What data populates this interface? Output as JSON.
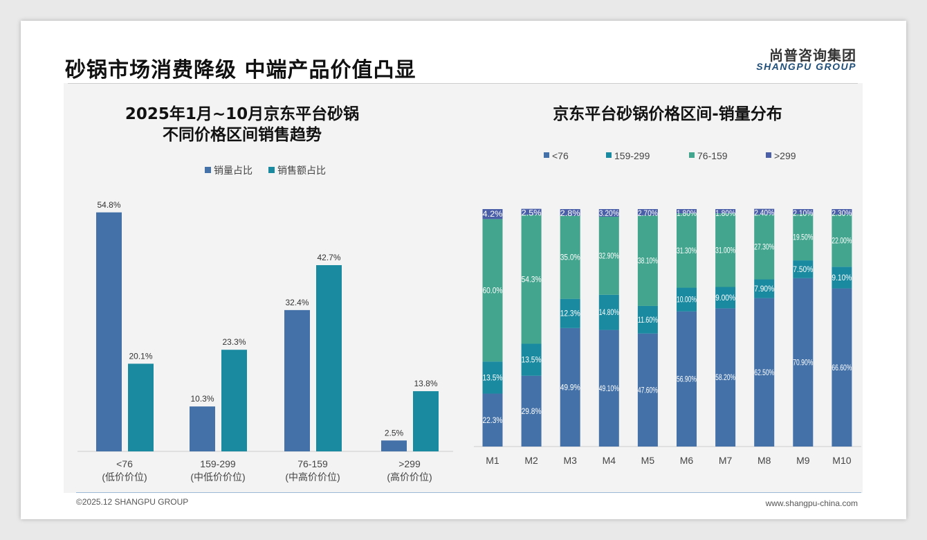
{
  "header": {
    "title": "砂锅市场消费降级 中端产品价值凸显",
    "logo_cn": "尚普咨询集团",
    "logo_en": "SHANGPU GROUP"
  },
  "footer": {
    "copyright": "©2025.12 SHANGPU GROUP",
    "website": "www.shangpu-china.com"
  },
  "colors": {
    "sales_volume": "#4472a8",
    "sales_amount": "#1a8aa0",
    "lt76": "#4472a8",
    "r159_299": "#1a8aa0",
    "r76_159": "#44a58e",
    "gt299": "#4a5fa8"
  },
  "chart_data": [
    {
      "type": "bar",
      "title_line1": "2025年1月~10月京东平台砂锅",
      "title_line2": "不同价格区间销售趋势",
      "categories": [
        "<76",
        "159-299",
        "76-159",
        ">299"
      ],
      "category_sublabels": [
        "(低价价位)",
        "(中低价价位)",
        "(中高价价位)",
        "(高价价位)"
      ],
      "series": [
        {
          "name": "销量占比",
          "values": [
            54.8,
            10.3,
            32.4,
            2.5
          ],
          "labels": [
            "54.8%",
            "10.3%",
            "32.4%",
            "2.5%"
          ]
        },
        {
          "name": "销售额占比",
          "values": [
            20.1,
            23.3,
            42.7,
            13.8
          ],
          "labels": [
            "20.1%",
            "23.3%",
            "42.7%",
            "13.8%"
          ]
        }
      ],
      "ylim": [
        0,
        60
      ],
      "legend": "top"
    },
    {
      "type": "bar",
      "stacked": true,
      "title": "京东平台砂锅价格区间-销量分布",
      "categories": [
        "M1",
        "M2",
        "M3",
        "M4",
        "M5",
        "M6",
        "M7",
        "M8",
        "M9",
        "M10"
      ],
      "legend_order": [
        "<76",
        "159-299",
        "76-159",
        ">299"
      ],
      "series": [
        {
          "name": "<76",
          "values": [
            22.3,
            29.8,
            49.9,
            49.1,
            47.6,
            56.9,
            58.2,
            62.5,
            70.9,
            66.6
          ],
          "labels": [
            "22.3%",
            "29.8%",
            "49.9%",
            "49.10%",
            "47.60%",
            "56.90%",
            "58.20%",
            "62.50%",
            "70.90%",
            "66.60%"
          ]
        },
        {
          "name": "159-299",
          "values": [
            13.5,
            13.5,
            12.3,
            14.8,
            11.6,
            10.0,
            9.0,
            7.9,
            7.5,
            9.1
          ],
          "labels": [
            "13.5%",
            "13.5%",
            "12.3%",
            "14.80%",
            "11.60%",
            "10.00%",
            "9.00%",
            "7.90%",
            "7.50%",
            "9.10%"
          ]
        },
        {
          "name": "76-159",
          "values": [
            60.0,
            54.3,
            35.0,
            32.9,
            38.1,
            31.3,
            31.0,
            27.3,
            19.5,
            22.0
          ],
          "labels": [
            "60.0%",
            "54.3%",
            "35.0%",
            "32.90%",
            "38.10%",
            "31.30%",
            "31.00%",
            "27.30%",
            "19.50%",
            "22.00%"
          ]
        },
        {
          "name": ">299",
          "values": [
            4.2,
            2.5,
            2.8,
            3.2,
            2.7,
            1.8,
            1.8,
            2.4,
            2.1,
            2.3
          ],
          "labels": [
            "4.2%",
            "2.5%",
            "2.8%",
            "3.20%",
            "2.70%",
            "1.80%",
            "1.80%",
            "2.40%",
            "2.10%",
            "2.30%"
          ]
        }
      ],
      "ylim": [
        0,
        100
      ],
      "legend": "top"
    }
  ]
}
